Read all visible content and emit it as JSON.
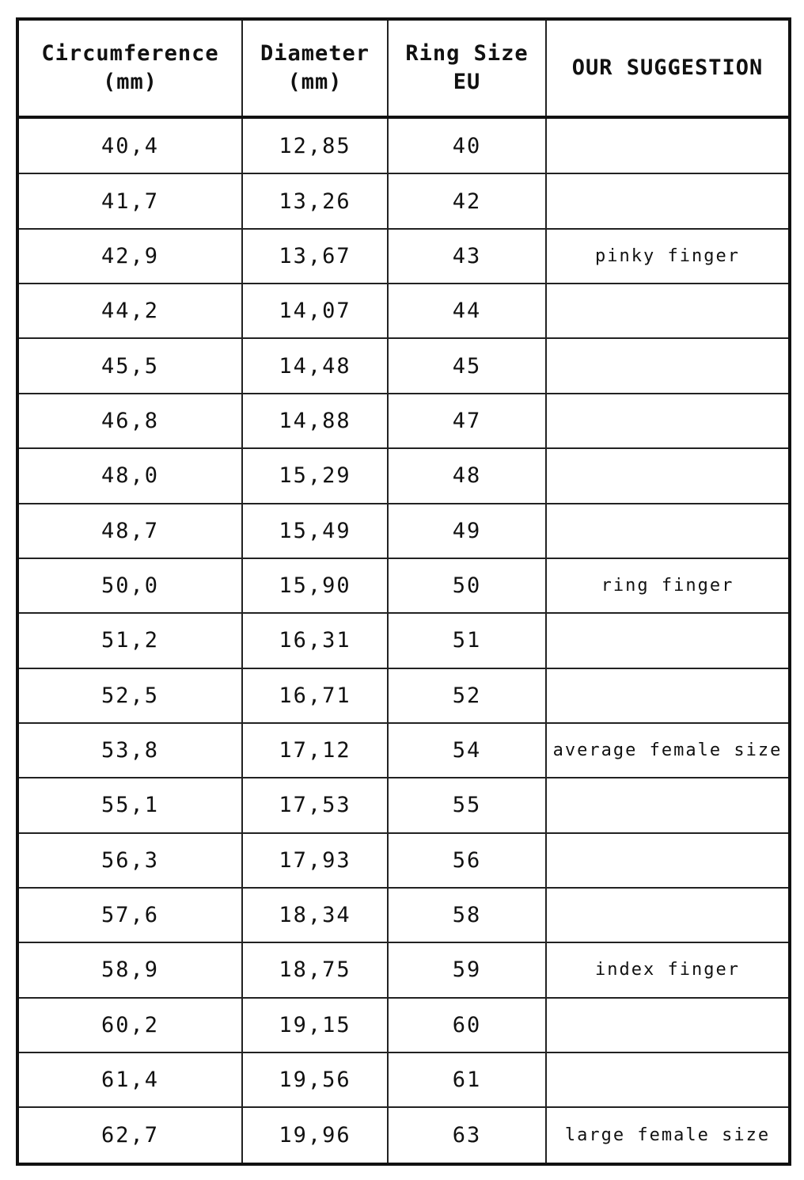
{
  "table": {
    "headers": [
      "Circumference\n(mm)",
      "Diameter\n(mm)",
      "Ring Size\nEU",
      "OUR SUGGESTION"
    ],
    "rows": [
      [
        "40,4",
        "12,85",
        "40",
        null
      ],
      [
        "41,7",
        "13,26",
        "42",
        null
      ],
      [
        "42,9",
        "13,67",
        "43",
        "pinky finger"
      ],
      [
        "44,2",
        "14,07",
        "44",
        null
      ],
      [
        "45,5",
        "14,48",
        "45",
        null
      ],
      [
        "46,8",
        "14,88",
        "47",
        null
      ],
      [
        "48,0",
        "15,29",
        "48",
        null
      ],
      [
        "48,7",
        "15,49",
        "49",
        null
      ],
      [
        "50,0",
        "15,90",
        "50",
        "ring finger"
      ],
      [
        "51,2",
        "16,31",
        "51",
        null
      ],
      [
        "52,5",
        "16,71",
        "52",
        null
      ],
      [
        "53,8",
        "17,12",
        "54",
        "average female size"
      ],
      [
        "55,1",
        "17,53",
        "55",
        null
      ],
      [
        "56,3",
        "17,93",
        "56",
        null
      ],
      [
        "57,6",
        "18,34",
        "58",
        null
      ],
      [
        "58,9",
        "18,75",
        "59",
        "index finger"
      ],
      [
        "60,2",
        "19,15",
        "60",
        null
      ],
      [
        "61,4",
        "19,56",
        "61",
        null
      ],
      [
        "62,7",
        "19,96",
        "63",
        "large female size"
      ]
    ]
  }
}
